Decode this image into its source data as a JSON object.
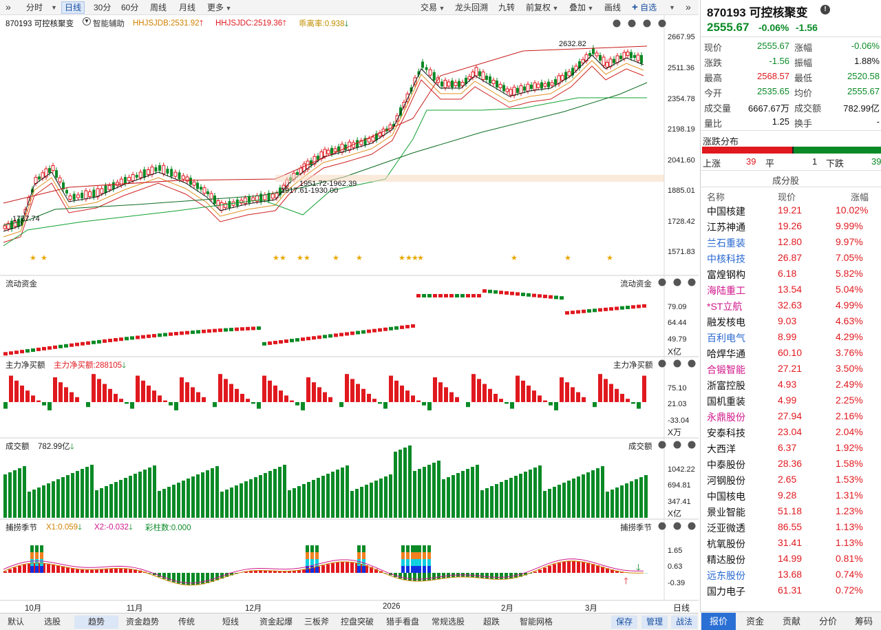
{
  "toolbar": {
    "left": [
      "分时",
      "日线",
      "30分",
      "60分",
      "周线",
      "月线",
      "更多"
    ],
    "right": [
      "交易",
      "龙头回溯",
      "九转",
      "前复权",
      "叠加",
      "画线",
      "自选"
    ],
    "collapse_left": "»",
    "collapse_right": "»"
  },
  "main": {
    "stock_label": "870193 可控核聚变",
    "assist_label": "智能辅助",
    "ind1": "HHJSJDB:2531.92",
    "ind2": "HHJSJDC:2519.36",
    "ind3": "乖离率:0.938",
    "high_label": "2632.82",
    "low_label": "1737.74",
    "box_label1": "1951.72-1962.39",
    "box_label2": "1917.61-1930.00",
    "y_labels": [
      "2667.95",
      "2511.36",
      "2354.78",
      "2198.19",
      "2041.60",
      "1885.01",
      "1728.42",
      "1571.83"
    ]
  },
  "panels": {
    "flow": {
      "title": "流动资金",
      "right": "流动资金",
      "y": [
        "79.09",
        "64.44",
        "49.79"
      ],
      "unit": "X亿"
    },
    "main_net": {
      "title": "主力净买额",
      "value": "主力净买额:288105",
      "right": "主力净买额",
      "y": [
        "75.10",
        "21.03",
        "-33.04"
      ],
      "unit": "X万"
    },
    "turnover": {
      "title": "成交额",
      "value": "782.99亿",
      "right": "成交额",
      "y": [
        "1042.22",
        "694.81",
        "347.41"
      ],
      "unit": "X亿"
    },
    "season": {
      "title": "捕捞季节",
      "x1": "X1:0.059",
      "x2": "X2:-0.032",
      "bars": "彩柱数:0.000",
      "right": "捕捞季节",
      "y": [
        "1.65",
        "0.63",
        "-0.39"
      ]
    }
  },
  "x_axis": {
    "labels": [
      "10月",
      "11月",
      "12月",
      "2026",
      "2月",
      "3月"
    ],
    "period": "日线"
  },
  "bottom_tabs": [
    "默认",
    "选股",
    "趋势",
    "资金趋势",
    "传统",
    "短线",
    "资金起爆",
    "三板斧",
    "控盘突破",
    "猎手看盘",
    "常规选股",
    "超跌",
    "智能网格",
    "保存",
    "管理",
    "战法"
  ],
  "quote": {
    "title": "870193 可控核聚变",
    "price": "2555.67",
    "change_pct": "-0.06%",
    "change": "-1.56",
    "fields": [
      {
        "l": "现价",
        "v": "2555.67",
        "c": "green"
      },
      {
        "l": "涨幅",
        "v": "-0.06%",
        "c": "green"
      },
      {
        "l": "涨跌",
        "v": "-1.56",
        "c": "green"
      },
      {
        "l": "振幅",
        "v": "1.88%",
        "c": "black"
      },
      {
        "l": "最高",
        "v": "2568.57",
        "c": "red"
      },
      {
        "l": "最低",
        "v": "2520.58",
        "c": "green"
      },
      {
        "l": "今开",
        "v": "2535.65",
        "c": "green"
      },
      {
        "l": "均价",
        "v": "2555.67",
        "c": "green"
      },
      {
        "l": "成交量",
        "v": "6667.67万",
        "c": "black"
      },
      {
        "l": "成交额",
        "v": "782.99亿",
        "c": "black"
      },
      {
        "l": "量比",
        "v": "1.25",
        "c": "black"
      },
      {
        "l": "换手",
        "v": "-",
        "c": "black"
      }
    ],
    "dist_title": "涨跌分布",
    "up_label": "上涨",
    "up": "39",
    "flat_label": "平",
    "flat": "1",
    "down_label": "下跌",
    "down": "39",
    "up_color": "#e0191f",
    "down_color": "#0a8a26"
  },
  "constituents": {
    "title": "成分股",
    "headers": [
      "名称",
      "现价",
      "涨幅"
    ],
    "rows": [
      {
        "n": "中国核建",
        "p": "19.21",
        "c": "10.02%",
        "nc": "black"
      },
      {
        "n": "江苏神通",
        "p": "19.26",
        "c": "9.99%",
        "nc": "black"
      },
      {
        "n": "兰石重装",
        "p": "12.80",
        "c": "9.97%",
        "nc": "blue"
      },
      {
        "n": "中核科技",
        "p": "26.87",
        "c": "7.05%",
        "nc": "blue"
      },
      {
        "n": "富煌钢构",
        "p": "6.18",
        "c": "5.82%",
        "nc": "black"
      },
      {
        "n": "海陆重工",
        "p": "13.54",
        "c": "5.04%",
        "nc": "pink"
      },
      {
        "n": "*ST立航",
        "p": "32.63",
        "c": "4.99%",
        "nc": "pink"
      },
      {
        "n": "融发核电",
        "p": "9.03",
        "c": "4.63%",
        "nc": "black"
      },
      {
        "n": "百利电气",
        "p": "8.99",
        "c": "4.29%",
        "nc": "blue"
      },
      {
        "n": "哈焊华通",
        "p": "60.10",
        "c": "3.76%",
        "nc": "black"
      },
      {
        "n": "合锻智能",
        "p": "27.21",
        "c": "3.50%",
        "nc": "pink"
      },
      {
        "n": "浙富控股",
        "p": "4.93",
        "c": "2.49%",
        "nc": "black"
      },
      {
        "n": "国机重装",
        "p": "4.99",
        "c": "2.25%",
        "nc": "black"
      },
      {
        "n": "永鼎股份",
        "p": "27.94",
        "c": "2.16%",
        "nc": "pink"
      },
      {
        "n": "安泰科技",
        "p": "23.04",
        "c": "2.04%",
        "nc": "black"
      },
      {
        "n": "大西洋",
        "p": "6.37",
        "c": "1.92%",
        "nc": "black"
      },
      {
        "n": "中泰股份",
        "p": "28.36",
        "c": "1.58%",
        "nc": "black"
      },
      {
        "n": "河钢股份",
        "p": "2.65",
        "c": "1.53%",
        "nc": "black"
      },
      {
        "n": "中国核电",
        "p": "9.28",
        "c": "1.31%",
        "nc": "black"
      },
      {
        "n": "景业智能",
        "p": "51.18",
        "c": "1.23%",
        "nc": "black"
      },
      {
        "n": "泛亚微透",
        "p": "86.55",
        "c": "1.13%",
        "nc": "black"
      },
      {
        "n": "杭氧股份",
        "p": "31.41",
        "c": "1.13%",
        "nc": "black"
      },
      {
        "n": "精达股份",
        "p": "14.99",
        "c": "0.81%",
        "nc": "black"
      },
      {
        "n": "远东股份",
        "p": "13.68",
        "c": "0.74%",
        "nc": "blue"
      },
      {
        "n": "国力电子",
        "p": "61.31",
        "c": "0.72%",
        "nc": "black"
      }
    ]
  },
  "right_tabs": [
    "报价",
    "资金",
    "贡献",
    "分价",
    "筹码"
  ],
  "colors": {
    "up": "#e0191f",
    "down": "#0a8a26",
    "ma1": "#111111",
    "ma2": "#e09020",
    "ma3": "#d02020",
    "ma4": "#10a030"
  }
}
